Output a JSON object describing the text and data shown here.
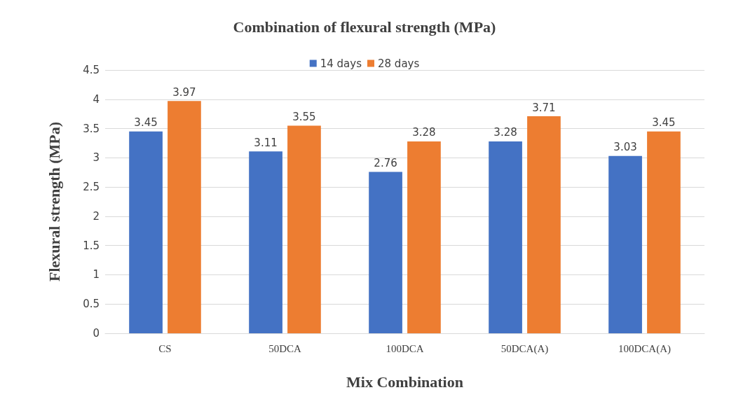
{
  "chart_data": {
    "type": "bar",
    "title": "Combination of flexural strength (MPa)",
    "xlabel": "Mix Combination",
    "ylabel": "Flexural strength (MPa)",
    "categories": [
      "CS",
      "50DCA",
      "100DCA",
      "50DCA(A)",
      "100DCA(A)"
    ],
    "series": [
      {
        "name": "14 days",
        "color": "#4472c4",
        "values": [
          3.45,
          3.11,
          2.76,
          3.28,
          3.03
        ]
      },
      {
        "name": "28 days",
        "color": "#ed7d31",
        "values": [
          3.97,
          3.55,
          3.28,
          3.71,
          3.45
        ]
      }
    ],
    "ylim": [
      0,
      4.5
    ],
    "yticks": [
      0,
      0.5,
      1,
      1.5,
      2,
      2.5,
      3,
      3.5,
      4,
      4.5
    ],
    "grid": "y",
    "legend": "top",
    "data_labels": true
  }
}
